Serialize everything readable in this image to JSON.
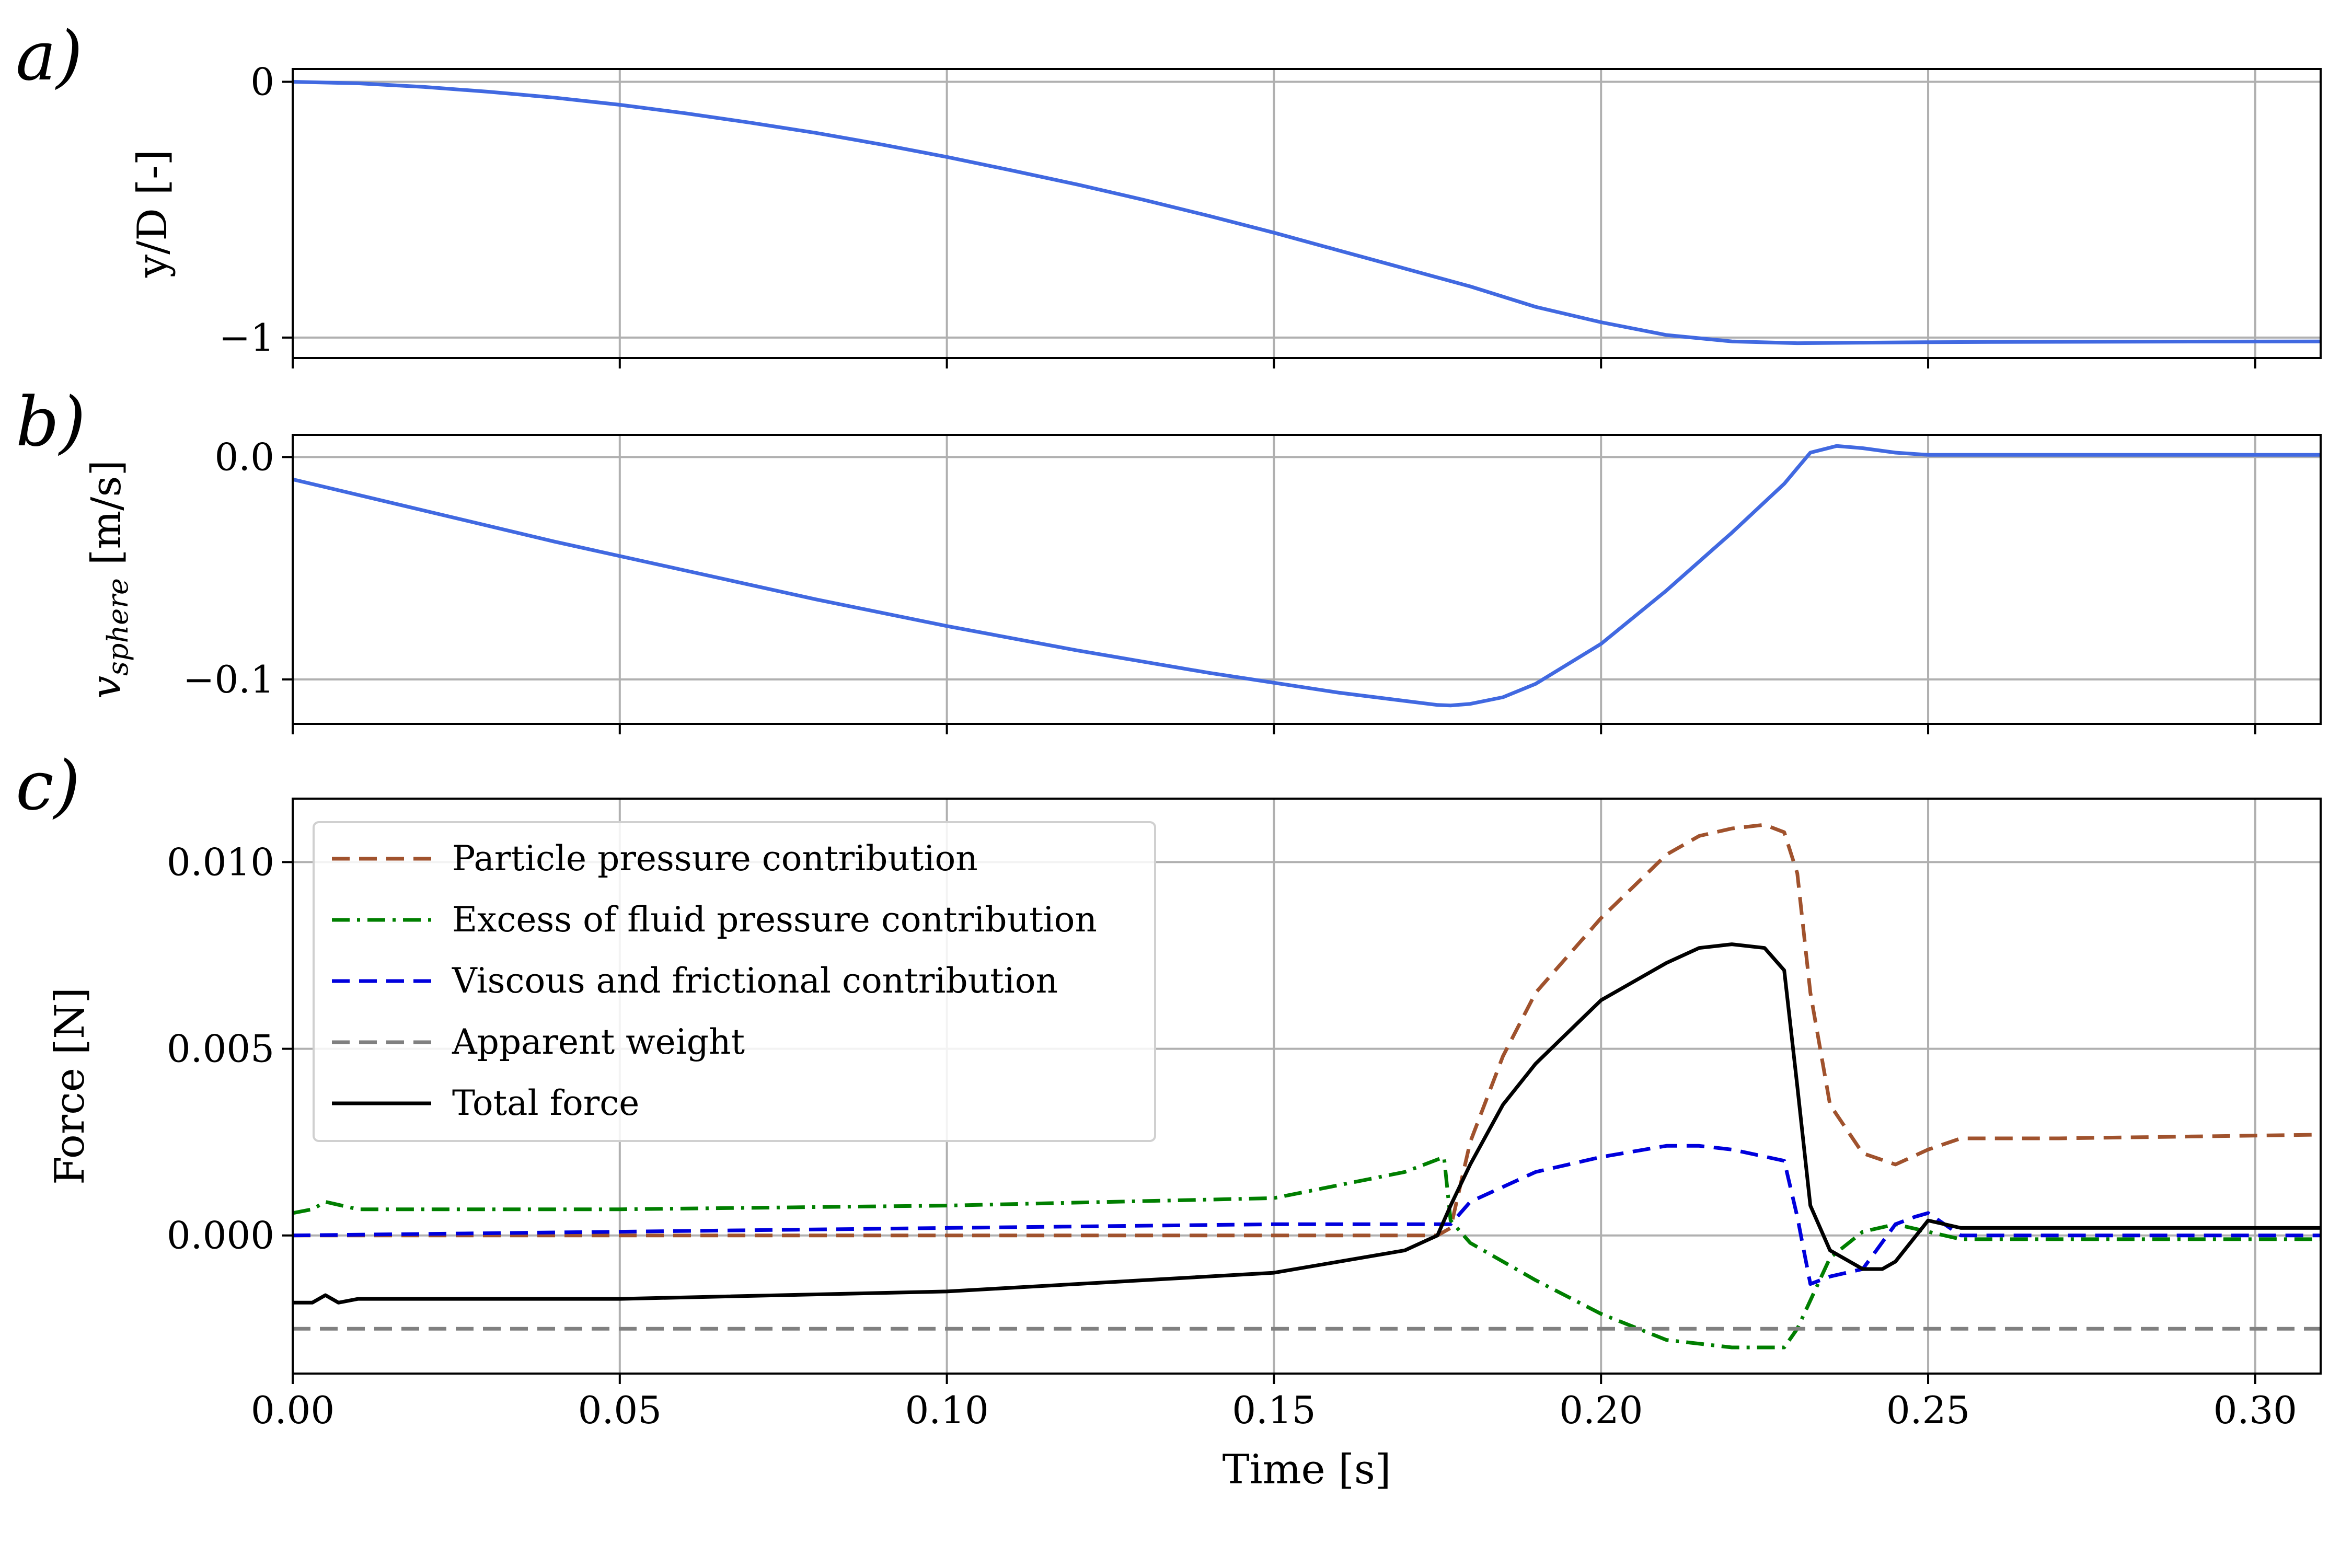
{
  "chart_data": [
    {
      "type": "line",
      "panel_label": "a)",
      "ylabel": "y/D [-]",
      "xlim": [
        0.0,
        0.31
      ],
      "ylim": [
        -1.08,
        0.05
      ],
      "xticks": [
        0.0,
        0.05,
        0.1,
        0.15,
        0.2,
        0.25,
        0.3
      ],
      "yticks": [
        0,
        -1
      ],
      "ytick_labels": [
        "0",
        "−1"
      ],
      "grid": true,
      "series": [
        {
          "color": "#4169e1",
          "dash": "solid",
          "x": [
            0.0,
            0.01,
            0.02,
            0.03,
            0.04,
            0.05,
            0.06,
            0.07,
            0.08,
            0.09,
            0.1,
            0.11,
            0.12,
            0.13,
            0.14,
            0.15,
            0.16,
            0.17,
            0.18,
            0.19,
            0.2,
            0.21,
            0.22,
            0.23,
            0.24,
            0.25,
            0.26,
            0.28,
            0.31
          ],
          "y": [
            0.0,
            -0.006,
            -0.02,
            -0.039,
            -0.062,
            -0.09,
            -0.123,
            -0.16,
            -0.2,
            -0.245,
            -0.294,
            -0.347,
            -0.402,
            -0.461,
            -0.524,
            -0.59,
            -0.66,
            -0.73,
            -0.8,
            -0.88,
            -0.94,
            -0.99,
            -1.015,
            -1.022,
            -1.02,
            -1.018,
            -1.017,
            -1.016,
            -1.015
          ]
        }
      ]
    },
    {
      "type": "line",
      "panel_label": "b)",
      "ylabel_main": "v",
      "ylabel_sub": "sphere",
      "ylabel_unit": "[m/s]",
      "xlim": [
        0.0,
        0.31
      ],
      "ylim": [
        -0.12,
        0.01
      ],
      "xticks": [
        0.0,
        0.05,
        0.1,
        0.15,
        0.2,
        0.25,
        0.3
      ],
      "yticks": [
        0.0,
        -0.1
      ],
      "ytick_labels": [
        "0.0",
        "−0.1"
      ],
      "grid": true,
      "series": [
        {
          "color": "#4169e1",
          "dash": "solid",
          "x": [
            0.0,
            0.02,
            0.04,
            0.06,
            0.08,
            0.1,
            0.12,
            0.14,
            0.16,
            0.175,
            0.177,
            0.18,
            0.185,
            0.19,
            0.2,
            0.21,
            0.22,
            0.228,
            0.232,
            0.236,
            0.24,
            0.245,
            0.25,
            0.26,
            0.31
          ],
          "y": [
            -0.01,
            -0.024,
            -0.038,
            -0.051,
            -0.064,
            -0.076,
            -0.087,
            -0.097,
            -0.106,
            -0.1115,
            -0.1117,
            -0.111,
            -0.108,
            -0.102,
            -0.084,
            -0.06,
            -0.034,
            -0.012,
            0.002,
            0.005,
            0.004,
            0.002,
            0.001,
            0.001,
            0.001
          ]
        }
      ]
    },
    {
      "type": "line",
      "panel_label": "c)",
      "xlabel": "Time [s]",
      "ylabel": "Force [N]",
      "xlim": [
        0.0,
        0.31
      ],
      "ylim": [
        -0.0037,
        0.0117
      ],
      "xticks": [
        0.0,
        0.05,
        0.1,
        0.15,
        0.2,
        0.25,
        0.3
      ],
      "xtick_labels": [
        "0.00",
        "0.05",
        "0.10",
        "0.15",
        "0.20",
        "0.25",
        "0.30"
      ],
      "yticks": [
        0.0,
        0.005,
        0.01
      ],
      "ytick_labels": [
        "0.000",
        "0.005",
        "0.010"
      ],
      "grid": true,
      "legend_position": "top-left",
      "series": [
        {
          "name": "Particle pressure contribution",
          "color": "#a0522d",
          "dash": "dashed",
          "x": [
            0.0,
            0.05,
            0.1,
            0.15,
            0.175,
            0.177,
            0.18,
            0.185,
            0.19,
            0.2,
            0.21,
            0.215,
            0.22,
            0.225,
            0.228,
            0.23,
            0.232,
            0.235,
            0.24,
            0.245,
            0.25,
            0.255,
            0.27,
            0.31
          ],
          "y": [
            0.0,
            0.0,
            0.0,
            0.0,
            0.0,
            0.0002,
            0.0025,
            0.0048,
            0.0065,
            0.0085,
            0.0102,
            0.0107,
            0.0109,
            0.011,
            0.0108,
            0.0097,
            0.0065,
            0.0035,
            0.0022,
            0.0019,
            0.0023,
            0.0026,
            0.0026,
            0.0027
          ]
        },
        {
          "name": "Excess of fluid pressure contribution",
          "color": "#007f00",
          "dash": "dashdot",
          "x": [
            0.0,
            0.003,
            0.005,
            0.01,
            0.05,
            0.1,
            0.15,
            0.17,
            0.176,
            0.177,
            0.18,
            0.19,
            0.2,
            0.21,
            0.22,
            0.228,
            0.23,
            0.235,
            0.24,
            0.245,
            0.25,
            0.255,
            0.31
          ],
          "y": [
            0.0006,
            0.0007,
            0.0009,
            0.0007,
            0.0007,
            0.0008,
            0.001,
            0.0017,
            0.0021,
            0.0004,
            -0.0002,
            -0.0012,
            -0.0021,
            -0.0028,
            -0.003,
            -0.003,
            -0.0025,
            -0.0006,
            0.0001,
            0.0003,
            0.0001,
            -0.0001,
            -0.0001
          ]
        },
        {
          "name": "Viscous and frictional contribution",
          "color": "#0000dd",
          "dash": "dashed",
          "x": [
            0.0,
            0.05,
            0.1,
            0.15,
            0.175,
            0.177,
            0.18,
            0.19,
            0.2,
            0.21,
            0.215,
            0.22,
            0.228,
            0.23,
            0.232,
            0.235,
            0.24,
            0.245,
            0.248,
            0.25,
            0.255,
            0.31
          ],
          "y": [
            0.0,
            0.0001,
            0.0002,
            0.0003,
            0.0003,
            0.0003,
            0.0009,
            0.0017,
            0.0021,
            0.0024,
            0.0024,
            0.0023,
            0.002,
            0.0005,
            -0.0013,
            -0.0011,
            -0.0009,
            0.0003,
            0.0005,
            0.0006,
            0.0,
            0.0
          ]
        },
        {
          "name": "Apparent weight",
          "color": "#808080",
          "dash": "dashed",
          "x": [
            0.0,
            0.31
          ],
          "y": [
            -0.0025,
            -0.0025
          ]
        },
        {
          "name": "Total force",
          "color": "#000000",
          "dash": "solid",
          "x": [
            0.0,
            0.003,
            0.005,
            0.007,
            0.01,
            0.05,
            0.1,
            0.15,
            0.17,
            0.175,
            0.177,
            0.18,
            0.185,
            0.19,
            0.2,
            0.21,
            0.215,
            0.22,
            0.225,
            0.228,
            0.23,
            0.232,
            0.235,
            0.24,
            0.243,
            0.245,
            0.25,
            0.255,
            0.27,
            0.31
          ],
          "y": [
            -0.0018,
            -0.0018,
            -0.0016,
            -0.0018,
            -0.0017,
            -0.0017,
            -0.0015,
            -0.001,
            -0.0004,
            0.0,
            0.0008,
            0.0019,
            0.0035,
            0.0046,
            0.0063,
            0.0073,
            0.0077,
            0.0078,
            0.0077,
            0.0071,
            0.004,
            0.0008,
            -0.0004,
            -0.0009,
            -0.0009,
            -0.0007,
            0.0004,
            0.0002,
            0.0002,
            0.0002
          ]
        }
      ]
    }
  ]
}
